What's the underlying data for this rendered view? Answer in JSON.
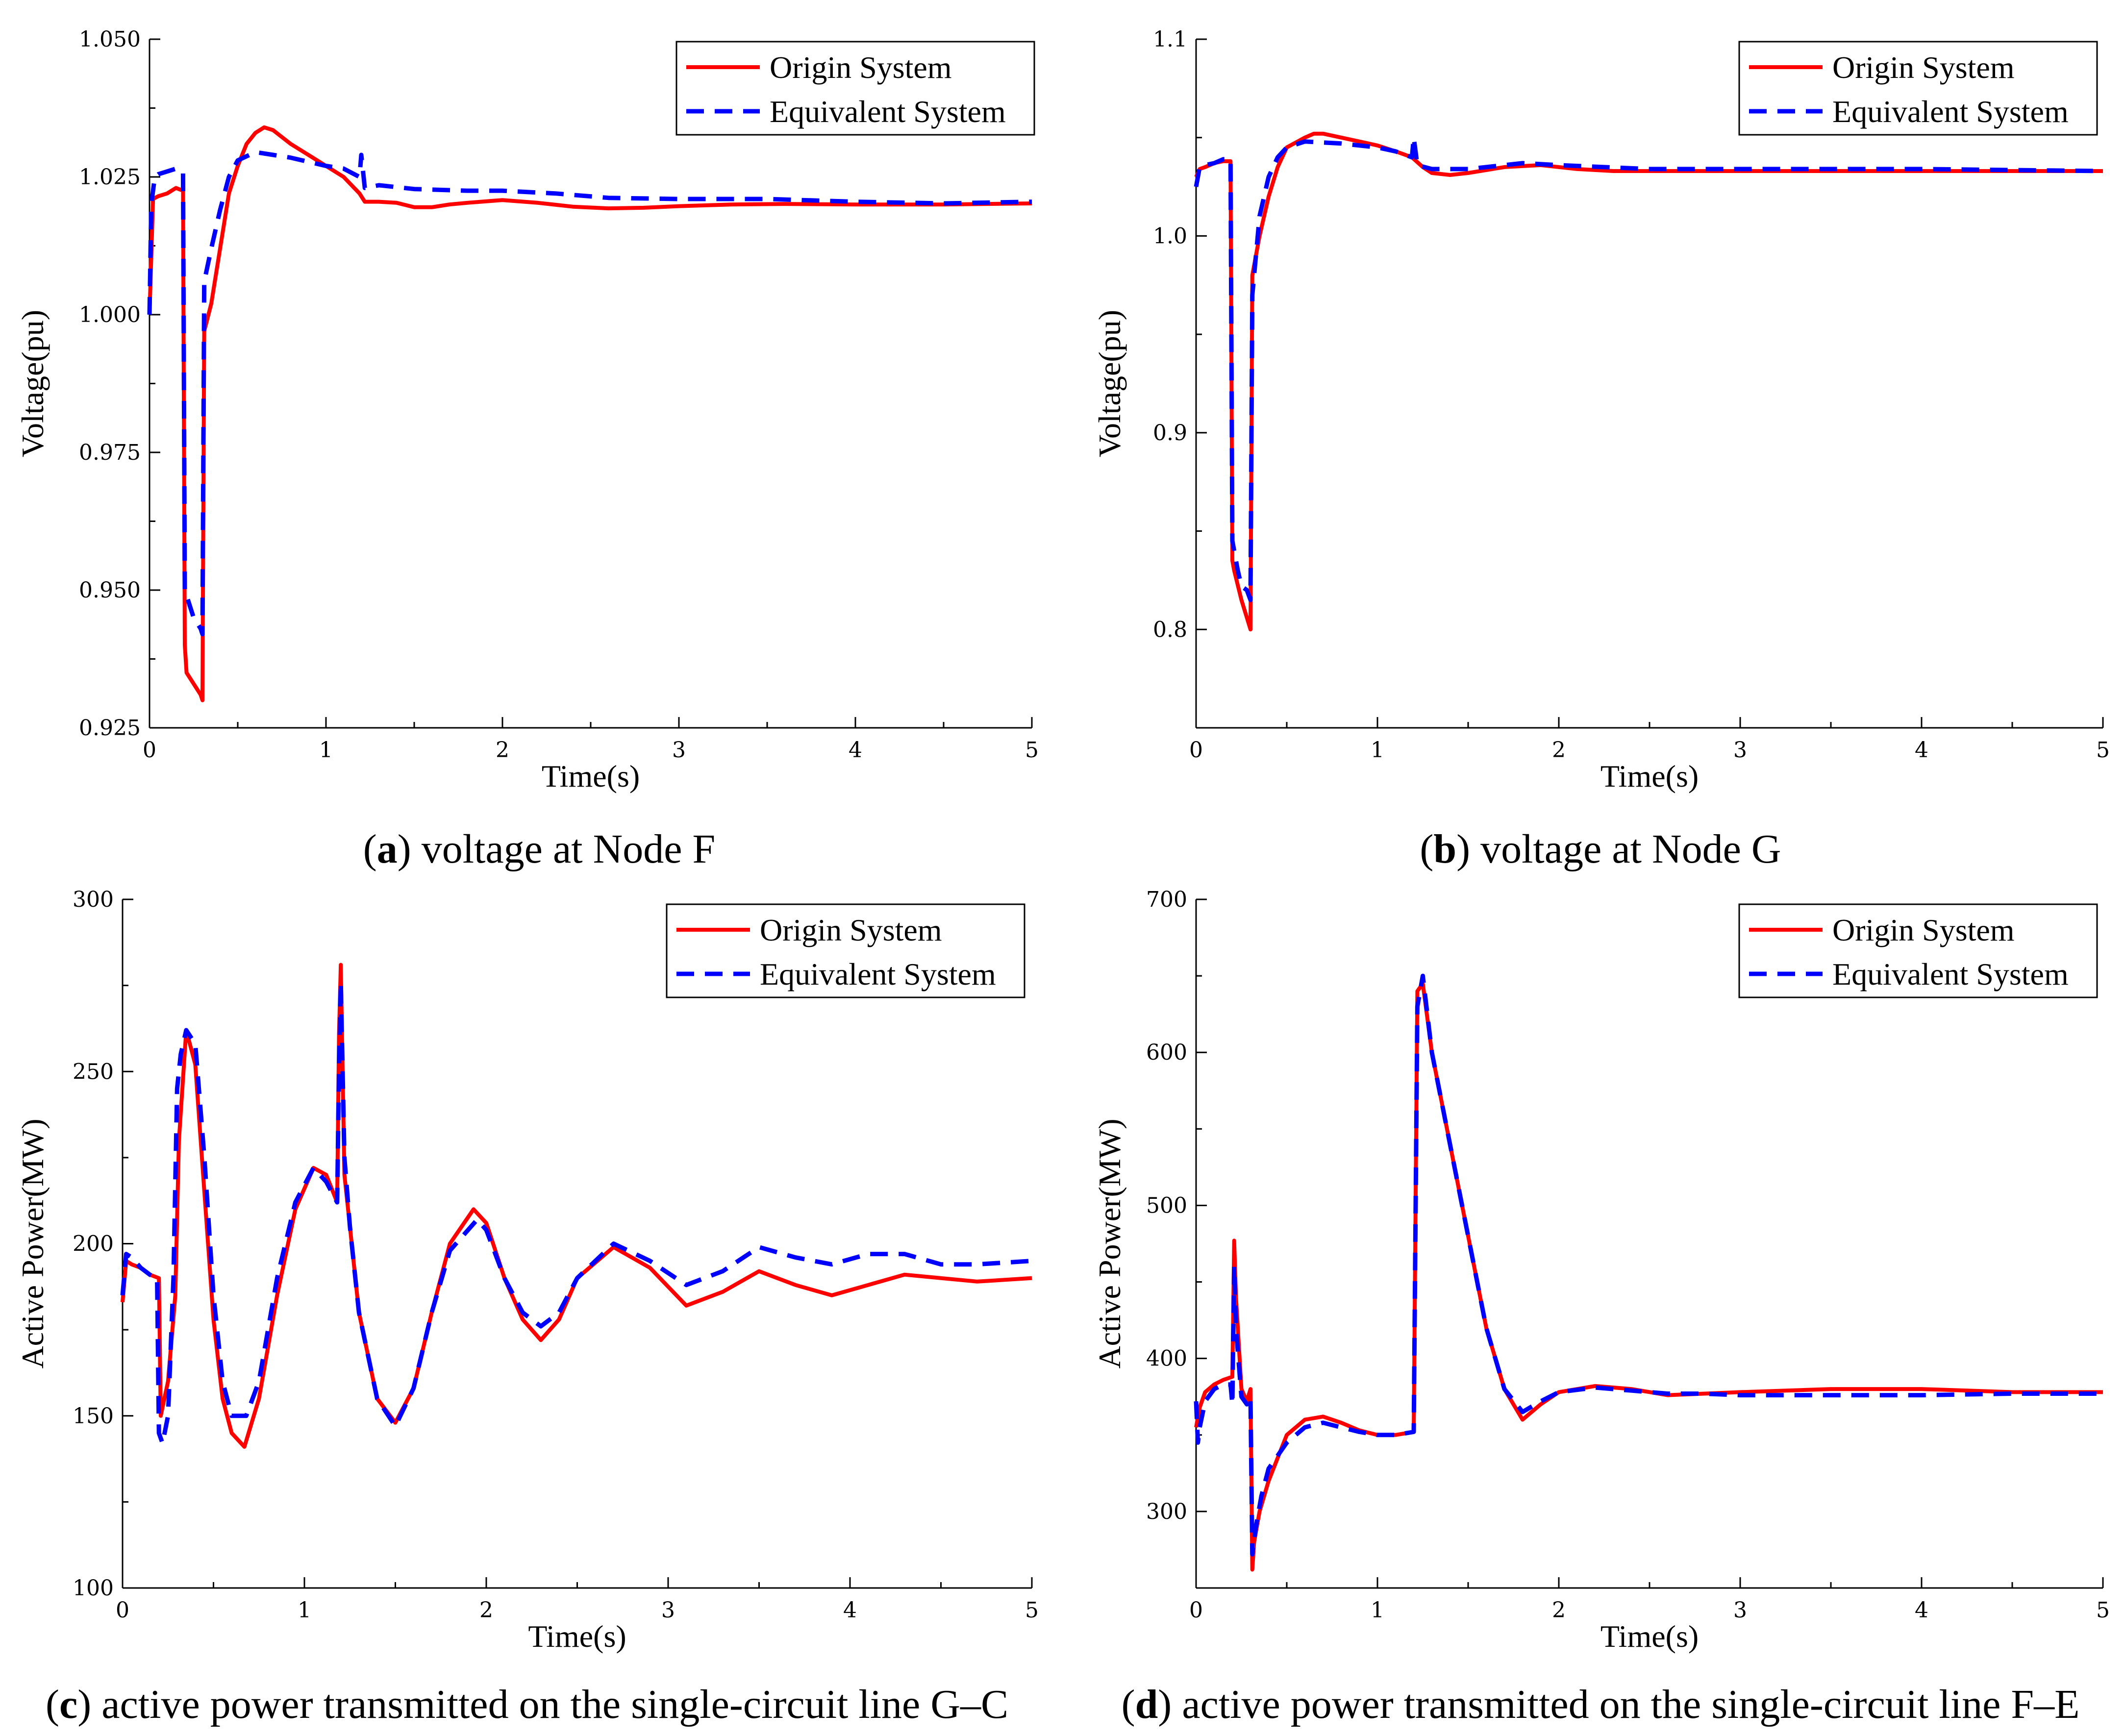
{
  "colors": {
    "origin": "#ff0000",
    "equivalent": "#0000ff",
    "axis": "#000000"
  },
  "chart_data": [
    {
      "type": "line",
      "id": "a",
      "caption_letter": "a",
      "caption_text": " voltage at Node F",
      "xlabel": "Time(s)",
      "ylabel": "Voltage(pu)",
      "xlim": [
        0,
        5
      ],
      "ylim": [
        0.925,
        1.05
      ],
      "xticks": [
        0,
        1,
        2,
        3,
        4,
        5
      ],
      "xtick_labels": [
        "0",
        "1",
        "2",
        "3",
        "4",
        "5"
      ],
      "yticks": [
        0.925,
        0.95,
        0.975,
        1.0,
        1.025,
        1.05
      ],
      "ytick_labels": [
        "0.925",
        "0.950",
        "0.975",
        "1.000",
        "1.025",
        "1.050"
      ],
      "legend": [
        "Origin System",
        "Equivalent System"
      ],
      "legend_position": "top-right",
      "series": [
        {
          "name": "Origin System",
          "style": "solid",
          "x": [
            0,
            0.02,
            0.05,
            0.1,
            0.15,
            0.19,
            0.2,
            0.21,
            0.23,
            0.25,
            0.27,
            0.29,
            0.3,
            0.31,
            0.35,
            0.4,
            0.45,
            0.5,
            0.55,
            0.6,
            0.65,
            0.7,
            0.8,
            0.9,
            1.0,
            1.1,
            1.19,
            1.22,
            1.3,
            1.4,
            1.5,
            1.6,
            1.7,
            1.8,
            2.0,
            2.2,
            2.4,
            2.6,
            2.8,
            3.0,
            3.3,
            3.6,
            4.0,
            4.5,
            5.0
          ],
          "y": [
            1.0,
            1.021,
            1.0215,
            1.022,
            1.023,
            1.0225,
            0.94,
            0.935,
            0.934,
            0.933,
            0.932,
            0.931,
            0.93,
            0.997,
            1.002,
            1.012,
            1.022,
            1.027,
            1.031,
            1.033,
            1.034,
            1.0335,
            1.031,
            1.029,
            1.027,
            1.025,
            1.022,
            1.0205,
            1.0205,
            1.0203,
            1.0195,
            1.0195,
            1.02,
            1.0203,
            1.0208,
            1.0203,
            1.0196,
            1.0193,
            1.0194,
            1.0197,
            1.02,
            1.0201,
            1.02,
            1.02,
            1.0202
          ]
        },
        {
          "name": "Equivalent System",
          "style": "dashed",
          "x": [
            0,
            0.01,
            0.03,
            0.05,
            0.1,
            0.15,
            0.19,
            0.2,
            0.21,
            0.23,
            0.25,
            0.27,
            0.29,
            0.3,
            0.31,
            0.35,
            0.4,
            0.45,
            0.5,
            0.6,
            0.7,
            0.8,
            1.0,
            1.1,
            1.19,
            1.2,
            1.22,
            1.3,
            1.5,
            1.8,
            2.0,
            2.3,
            2.6,
            3.0,
            3.5,
            4.0,
            4.5,
            5.0
          ],
          "y": [
            1.0,
            1.02,
            1.025,
            1.0255,
            1.026,
            1.0265,
            1.026,
            0.95,
            0.949,
            0.947,
            0.945,
            0.944,
            0.943,
            0.942,
            1.006,
            1.012,
            1.019,
            1.025,
            1.028,
            1.0295,
            1.029,
            1.0285,
            1.027,
            1.0265,
            1.025,
            1.029,
            1.023,
            1.0235,
            1.0228,
            1.0225,
            1.0225,
            1.022,
            1.0212,
            1.021,
            1.021,
            1.0205,
            1.0202,
            1.0205
          ]
        }
      ]
    },
    {
      "type": "line",
      "id": "b",
      "caption_letter": "b",
      "caption_text": " voltage at Node G",
      "xlabel": "Time(s)",
      "ylabel": "Voltage(pu)",
      "xlim": [
        0,
        5
      ],
      "ylim": [
        0.75,
        1.1
      ],
      "xticks": [
        0,
        1,
        2,
        3,
        4,
        5
      ],
      "xtick_labels": [
        "0",
        "1",
        "2",
        "3",
        "4",
        "5"
      ],
      "yticks": [
        0.8,
        0.9,
        1.0,
        1.1
      ],
      "ytick_labels": [
        "0.8",
        "0.9",
        "1.0",
        "1.1"
      ],
      "yminor": [
        0.75,
        0.85,
        0.95,
        1.05
      ],
      "legend": [
        "Origin System",
        "Equivalent System"
      ],
      "legend_position": "top-right",
      "series": [
        {
          "name": "Origin System",
          "style": "solid",
          "x": [
            0,
            0.02,
            0.05,
            0.1,
            0.15,
            0.19,
            0.2,
            0.21,
            0.25,
            0.28,
            0.3,
            0.31,
            0.35,
            0.4,
            0.45,
            0.5,
            0.6,
            0.65,
            0.7,
            0.8,
            0.9,
            1.0,
            1.1,
            1.19,
            1.25,
            1.3,
            1.4,
            1.5,
            1.7,
            1.9,
            2.1,
            2.3,
            2.5,
            3.0,
            3.5,
            4.0,
            4.5,
            5.0
          ],
          "y": [
            1.03,
            1.034,
            1.035,
            1.037,
            1.038,
            1.038,
            0.835,
            0.83,
            0.815,
            0.806,
            0.8,
            0.98,
            1.0,
            1.02,
            1.035,
            1.045,
            1.05,
            1.052,
            1.052,
            1.05,
            1.048,
            1.046,
            1.043,
            1.04,
            1.035,
            1.032,
            1.031,
            1.032,
            1.035,
            1.036,
            1.034,
            1.033,
            1.033,
            1.033,
            1.033,
            1.033,
            1.033,
            1.033
          ]
        },
        {
          "name": "Equivalent System",
          "style": "dashed",
          "x": [
            0,
            0.02,
            0.05,
            0.1,
            0.15,
            0.19,
            0.2,
            0.21,
            0.23,
            0.25,
            0.28,
            0.3,
            0.31,
            0.35,
            0.4,
            0.45,
            0.5,
            0.6,
            0.8,
            1.0,
            1.1,
            1.19,
            1.2,
            1.22,
            1.3,
            1.5,
            1.8,
            2.0,
            2.5,
            3.0,
            4.0,
            5.0
          ],
          "y": [
            1.025,
            1.035,
            1.036,
            1.037,
            1.039,
            1.039,
            0.845,
            0.84,
            0.83,
            0.822,
            0.82,
            0.815,
            0.97,
            1.01,
            1.03,
            1.04,
            1.045,
            1.048,
            1.047,
            1.045,
            1.043,
            1.04,
            1.05,
            1.036,
            1.034,
            1.034,
            1.037,
            1.036,
            1.034,
            1.034,
            1.034,
            1.033
          ]
        }
      ]
    },
    {
      "type": "line",
      "id": "c",
      "caption_letter": "c",
      "caption_text": " active power transmitted on the single-circuit line G–C",
      "xlabel": "Time(s)",
      "ylabel": "Active Power(MW)",
      "xlim": [
        0,
        5
      ],
      "ylim": [
        100,
        300
      ],
      "xticks": [
        0,
        1,
        2,
        3,
        4,
        5
      ],
      "xtick_labels": [
        "0",
        "1",
        "2",
        "3",
        "4",
        "5"
      ],
      "yticks": [
        100,
        150,
        200,
        250,
        300
      ],
      "ytick_labels": [
        "100",
        "150",
        "200",
        "250",
        "300"
      ],
      "yminor": [
        125,
        175,
        225,
        275
      ],
      "legend": [
        "Origin System",
        "Equivalent System"
      ],
      "legend_position": "top-right",
      "series": [
        {
          "name": "Origin System",
          "style": "solid",
          "x": [
            0,
            0.02,
            0.05,
            0.1,
            0.15,
            0.2,
            0.21,
            0.25,
            0.29,
            0.31,
            0.35,
            0.4,
            0.45,
            0.5,
            0.55,
            0.6,
            0.67,
            0.75,
            0.85,
            0.95,
            1.05,
            1.12,
            1.18,
            1.19,
            1.2,
            1.22,
            1.25,
            1.3,
            1.4,
            1.5,
            1.6,
            1.7,
            1.8,
            1.93,
            2.0,
            2.1,
            2.2,
            2.3,
            2.4,
            2.5,
            2.7,
            2.9,
            3.1,
            3.3,
            3.5,
            3.7,
            3.9,
            4.1,
            4.3,
            4.5,
            4.7,
            5.0
          ],
          "y": [
            183,
            195,
            194,
            193,
            191,
            190,
            150,
            160,
            185,
            230,
            262,
            252,
            215,
            178,
            155,
            145,
            141,
            155,
            185,
            210,
            222,
            220,
            212,
            260,
            281,
            220,
            205,
            180,
            155,
            148,
            158,
            180,
            200,
            210,
            206,
            190,
            178,
            172,
            178,
            190,
            199,
            193,
            182,
            186,
            192,
            188,
            185,
            188,
            191,
            190,
            189,
            190
          ]
        },
        {
          "name": "Equivalent System",
          "style": "dashed",
          "x": [
            0,
            0.02,
            0.05,
            0.1,
            0.15,
            0.19,
            0.2,
            0.22,
            0.25,
            0.28,
            0.3,
            0.32,
            0.35,
            0.4,
            0.45,
            0.5,
            0.55,
            0.6,
            0.68,
            0.75,
            0.85,
            0.95,
            1.05,
            1.12,
            1.18,
            1.19,
            1.2,
            1.22,
            1.25,
            1.3,
            1.4,
            1.5,
            1.6,
            1.7,
            1.8,
            1.95,
            2.0,
            2.1,
            2.2,
            2.3,
            2.4,
            2.5,
            2.7,
            2.9,
            3.1,
            3.3,
            3.5,
            3.7,
            3.9,
            4.1,
            4.3,
            4.5,
            4.7,
            5.0
          ],
          "y": [
            185,
            197,
            196,
            193,
            191,
            190,
            145,
            142,
            150,
            190,
            245,
            255,
            262,
            258,
            225,
            185,
            160,
            150,
            150,
            160,
            190,
            212,
            222,
            218,
            212,
            250,
            276,
            225,
            205,
            180,
            155,
            147,
            158,
            180,
            198,
            207,
            204,
            190,
            180,
            176,
            180,
            190,
            200,
            195,
            188,
            192,
            199,
            196,
            194,
            197,
            197,
            194,
            194,
            195
          ]
        }
      ]
    },
    {
      "type": "line",
      "id": "d",
      "caption_letter": "d",
      "caption_text": " active power transmitted on the single-circuit line F–E",
      "xlabel": "Time(s)",
      "ylabel": "Active Power(MW)",
      "xlim": [
        0,
        5
      ],
      "ylim": [
        250,
        700
      ],
      "xticks": [
        0,
        1,
        2,
        3,
        4,
        5
      ],
      "xtick_labels": [
        "0",
        "1",
        "2",
        "3",
        "4",
        "5"
      ],
      "yticks": [
        300,
        400,
        500,
        600,
        700
      ],
      "ytick_labels": [
        "300",
        "400",
        "500",
        "600",
        "700"
      ],
      "yminor": [
        250,
        350,
        450,
        550,
        650
      ],
      "legend": [
        "Origin System",
        "Equivalent System"
      ],
      "legend_position": "top-right",
      "series": [
        {
          "name": "Origin System",
          "style": "solid",
          "x": [
            0,
            0.02,
            0.05,
            0.1,
            0.15,
            0.2,
            0.21,
            0.22,
            0.25,
            0.28,
            0.3,
            0.31,
            0.32,
            0.35,
            0.4,
            0.5,
            0.6,
            0.7,
            0.8,
            0.9,
            1.0,
            1.1,
            1.2,
            1.22,
            1.25,
            1.3,
            1.4,
            1.5,
            1.6,
            1.7,
            1.8,
            1.9,
            2.0,
            2.2,
            2.4,
            2.6,
            2.8,
            3.0,
            3.5,
            4.0,
            4.5,
            5.0
          ],
          "y": [
            355,
            368,
            378,
            383,
            386,
            388,
            477,
            440,
            380,
            372,
            380,
            262,
            280,
            300,
            320,
            350,
            360,
            362,
            358,
            353,
            350,
            350,
            352,
            640,
            645,
            600,
            540,
            480,
            420,
            380,
            360,
            370,
            378,
            382,
            380,
            376,
            377,
            378,
            380,
            380,
            378,
            378
          ]
        },
        {
          "name": "Equivalent System",
          "style": "dashed",
          "x": [
            0,
            0.01,
            0.02,
            0.05,
            0.1,
            0.15,
            0.19,
            0.2,
            0.21,
            0.22,
            0.25,
            0.28,
            0.3,
            0.31,
            0.33,
            0.36,
            0.4,
            0.5,
            0.6,
            0.7,
            0.8,
            0.9,
            1.0,
            1.1,
            1.2,
            1.22,
            1.25,
            1.3,
            1.4,
            1.5,
            1.6,
            1.7,
            1.8,
            1.9,
            2.0,
            2.2,
            2.4,
            2.6,
            2.8,
            3.0,
            3.5,
            4.0,
            4.5,
            5.0
          ],
          "y": [
            372,
            345,
            355,
            372,
            380,
            383,
            383,
            370,
            460,
            420,
            375,
            370,
            375,
            272,
            290,
            310,
            328,
            345,
            355,
            358,
            355,
            352,
            350,
            350,
            352,
            630,
            650,
            600,
            540,
            480,
            420,
            380,
            365,
            372,
            378,
            381,
            379,
            377,
            377,
            376,
            376,
            376,
            377,
            377
          ]
        }
      ]
    }
  ]
}
